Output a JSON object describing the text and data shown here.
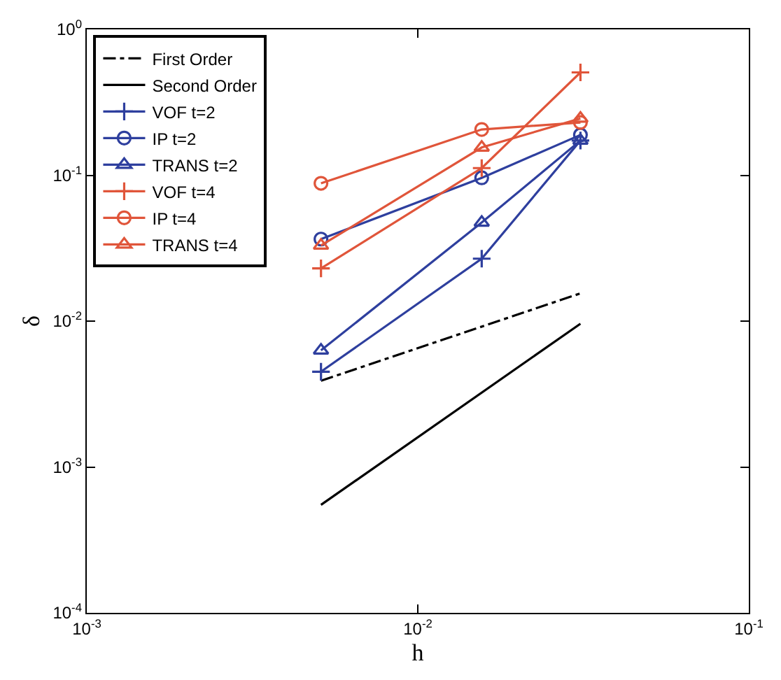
{
  "chart_data": {
    "type": "line",
    "xlabel": "h",
    "ylabel": "δ",
    "log": "xy",
    "xlim": [
      0.001,
      0.1
    ],
    "ylim": [
      0.0001,
      1
    ],
    "xticks": [
      {
        "value": 0.001,
        "label": "10$^{-3}$"
      },
      {
        "value": 0.01,
        "label": "10$^{-2}$"
      },
      {
        "value": 0.1,
        "label": "10$^{-1}$"
      }
    ],
    "yticks": [
      {
        "value": 0.0001,
        "label": "10$^{-4}$"
      },
      {
        "value": 0.001,
        "label": "10$^{-3}$"
      },
      {
        "value": 0.01,
        "label": "10$^{-2}$"
      },
      {
        "value": 0.1,
        "label": "10$^{-1}$"
      },
      {
        "value": 1,
        "label": "10$^{0}$"
      }
    ],
    "legend": "top left",
    "series": [
      {
        "name": "First Order",
        "color": "#000000",
        "x": [
          0.0051,
          0.031
        ],
        "values": [
          0.0039,
          0.0155
        ],
        "marker": "none",
        "line_style": "dashdot"
      },
      {
        "name": "Second Order",
        "color": "#000000",
        "x": [
          0.0051,
          0.031
        ],
        "values": [
          0.00055,
          0.0096
        ],
        "marker": "none",
        "line_style": "solid"
      },
      {
        "name": "VOF t=2",
        "color": "#2e3f9e",
        "x": [
          0.0051,
          0.0156,
          0.031
        ],
        "values": [
          0.0045,
          0.0268,
          0.173
        ],
        "marker": "cross",
        "line_style": "solid"
      },
      {
        "name": "IP t=2",
        "color": "#2e3f9e",
        "x": [
          0.0051,
          0.0156,
          0.031
        ],
        "values": [
          0.0365,
          0.096,
          0.189
        ],
        "marker": "circle",
        "line_style": "solid"
      },
      {
        "name": "TRANS t=2",
        "color": "#2e3f9e",
        "x": [
          0.0051,
          0.0156,
          0.031
        ],
        "values": [
          0.0063,
          0.0474,
          0.173
        ],
        "marker": "triangle",
        "line_style": "solid"
      },
      {
        "name": "VOF t=4",
        "color": "#e0553a",
        "x": [
          0.0051,
          0.0156,
          0.031
        ],
        "values": [
          0.023,
          0.112,
          0.507
        ],
        "marker": "cross",
        "line_style": "solid"
      },
      {
        "name": "IP t=4",
        "color": "#e0553a",
        "x": [
          0.0051,
          0.0156,
          0.031
        ],
        "values": [
          0.088,
          0.206,
          0.23
        ],
        "marker": "circle",
        "line_style": "solid"
      },
      {
        "name": "TRANS t=4",
        "color": "#e0553a",
        "x": [
          0.0051,
          0.0156,
          0.031
        ],
        "values": [
          0.033,
          0.155,
          0.245
        ],
        "marker": "triangle",
        "line_style": "solid"
      }
    ]
  }
}
